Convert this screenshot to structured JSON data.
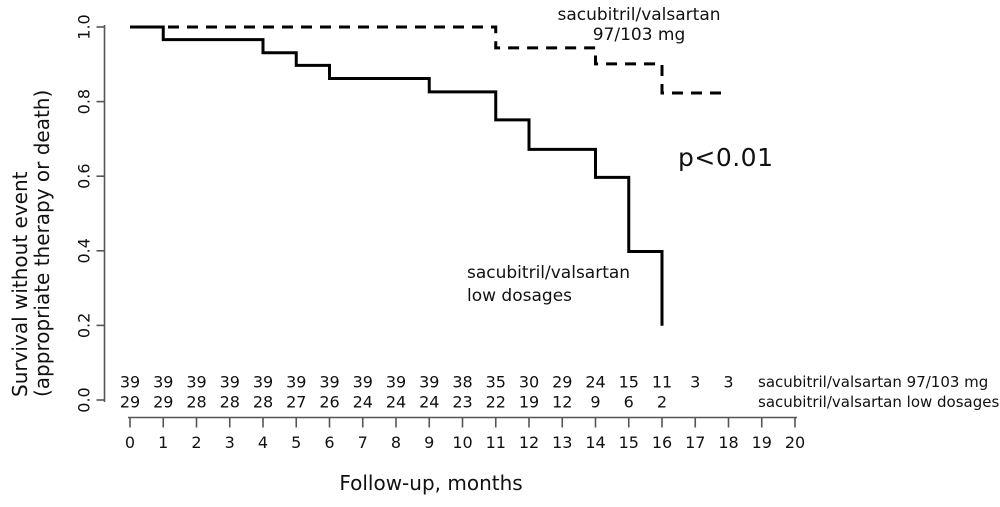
{
  "colors": {
    "curve": "#000000",
    "axis": "#555555",
    "text": "#111111"
  },
  "chart_data": {
    "type": "line",
    "subtype": "kaplan-meier-step",
    "title": "",
    "xlabel": "Follow-up, months",
    "ylabel_lines": [
      "Survival without event",
      "(appropriate therapy or death)"
    ],
    "xlim": [
      0,
      20
    ],
    "ylim": [
      0.0,
      1.0
    ],
    "x_ticks": [
      0,
      1,
      2,
      3,
      4,
      5,
      6,
      7,
      8,
      9,
      10,
      11,
      12,
      13,
      14,
      15,
      16,
      17,
      18,
      19,
      20
    ],
    "y_ticks": [
      0.0,
      0.2,
      0.4,
      0.6,
      0.8,
      1.0
    ],
    "grid": "off",
    "legend_position": "curve-adjacent-text",
    "annotation": {
      "text": "p<0.01"
    },
    "series": [
      {
        "name": "sacubitril/valsartan 97/103 mg",
        "label_lines": [
          "sacubitril/valsartan",
          "97/103 mg"
        ],
        "line_style": "dashed",
        "color": "#000000",
        "steps": [
          {
            "x": 0,
            "y": 1.0
          },
          {
            "x": 11,
            "y": 0.944
          },
          {
            "x": 14,
            "y": 0.901
          },
          {
            "x": 16,
            "y": 0.823
          }
        ],
        "end_x": 18
      },
      {
        "name": "sacubitril/valsartan low dosages",
        "label_lines": [
          "sacubitril/valsartan",
          "low dosages"
        ],
        "line_style": "solid",
        "color": "#000000",
        "steps": [
          {
            "x": 0,
            "y": 1.0
          },
          {
            "x": 1,
            "y": 0.966
          },
          {
            "x": 4,
            "y": 0.931
          },
          {
            "x": 5,
            "y": 0.897
          },
          {
            "x": 6,
            "y": 0.862
          },
          {
            "x": 9,
            "y": 0.826
          },
          {
            "x": 11,
            "y": 0.751
          },
          {
            "x": 12,
            "y": 0.672
          },
          {
            "x": 14,
            "y": 0.597
          },
          {
            "x": 15,
            "y": 0.398
          },
          {
            "x": 16,
            "y": 0.199
          }
        ],
        "end_x": 16
      }
    ],
    "risk_table": {
      "rows": [
        {
          "label": "sacubitril/valsartan 97/103 mg",
          "counts": [
            39,
            39,
            39,
            39,
            39,
            39,
            39,
            39,
            39,
            39,
            38,
            35,
            30,
            29,
            24,
            15,
            11,
            3,
            3
          ]
        },
        {
          "label": "sacubitril/valsartan low dosages",
          "counts": [
            29,
            29,
            28,
            28,
            28,
            27,
            26,
            24,
            24,
            24,
            23,
            22,
            19,
            12,
            9,
            6,
            2
          ]
        }
      ]
    }
  }
}
